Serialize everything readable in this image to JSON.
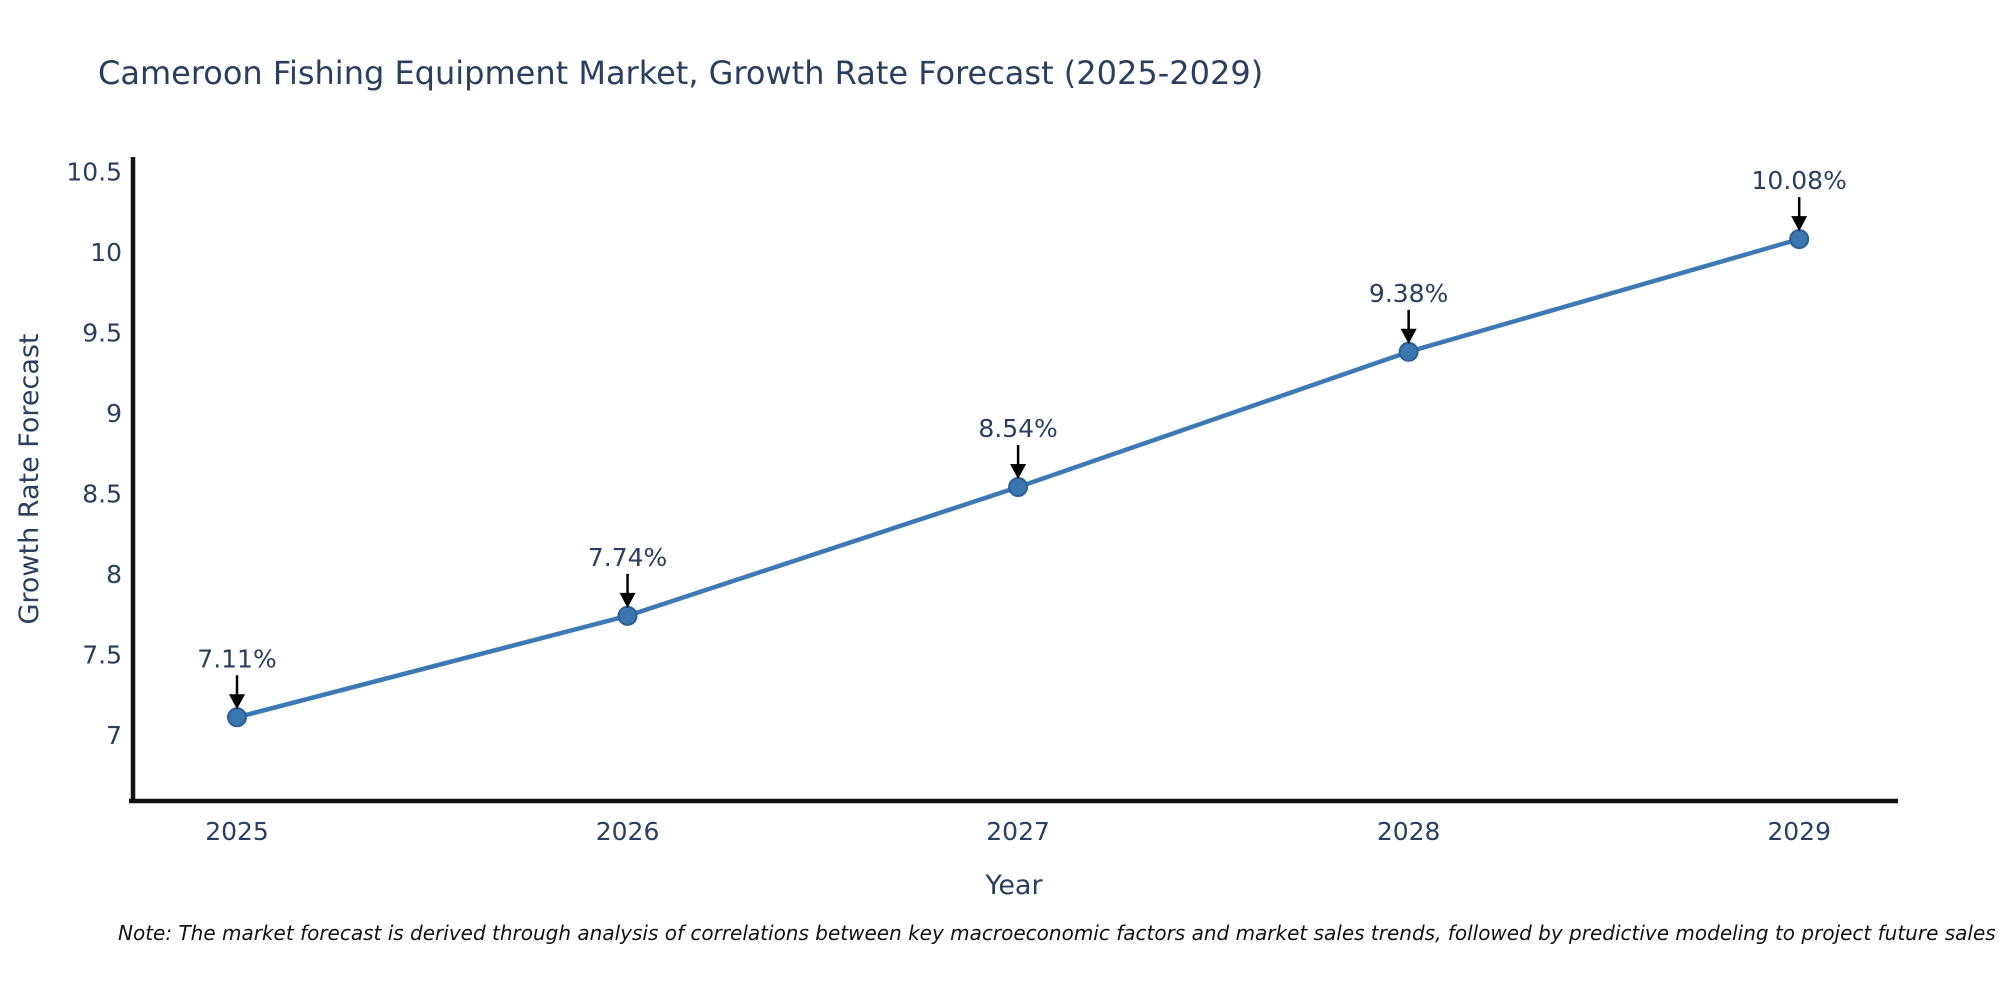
{
  "chart_data": {
    "type": "line",
    "title": "Cameroon Fishing Equipment Market, Growth Rate Forecast (2025-2029)",
    "xlabel": "Year",
    "ylabel": "Growth Rate Forecast",
    "x": [
      2025,
      2026,
      2027,
      2028,
      2029
    ],
    "series": [
      {
        "name": "Growth Rate Forecast",
        "values": [
          7.11,
          7.74,
          8.54,
          9.38,
          10.08
        ]
      }
    ],
    "point_labels": [
      "7.11%",
      "7.74%",
      "8.54%",
      "9.38%",
      "10.08%"
    ],
    "yticks": [
      7,
      7.5,
      8,
      8.5,
      9,
      9.5,
      10,
      10.5
    ],
    "ylim": [
      6.59,
      10.59
    ],
    "xlim": [
      2024.726,
      2029.253
    ],
    "grid": false,
    "legend": false,
    "colors": {
      "line": "#3d7ab5",
      "marker_fill": "#3a76b0",
      "marker_edge": "#2b5f95",
      "axis": "#111111",
      "text": "#2a3f5f",
      "annotation_arrow": "#000000"
    }
  },
  "footnote": {
    "text": "Note: The market forecast is derived through analysis of correlations between key macroeconomic factors and market sales trends, followed by predictive modeling to project future sales"
  }
}
